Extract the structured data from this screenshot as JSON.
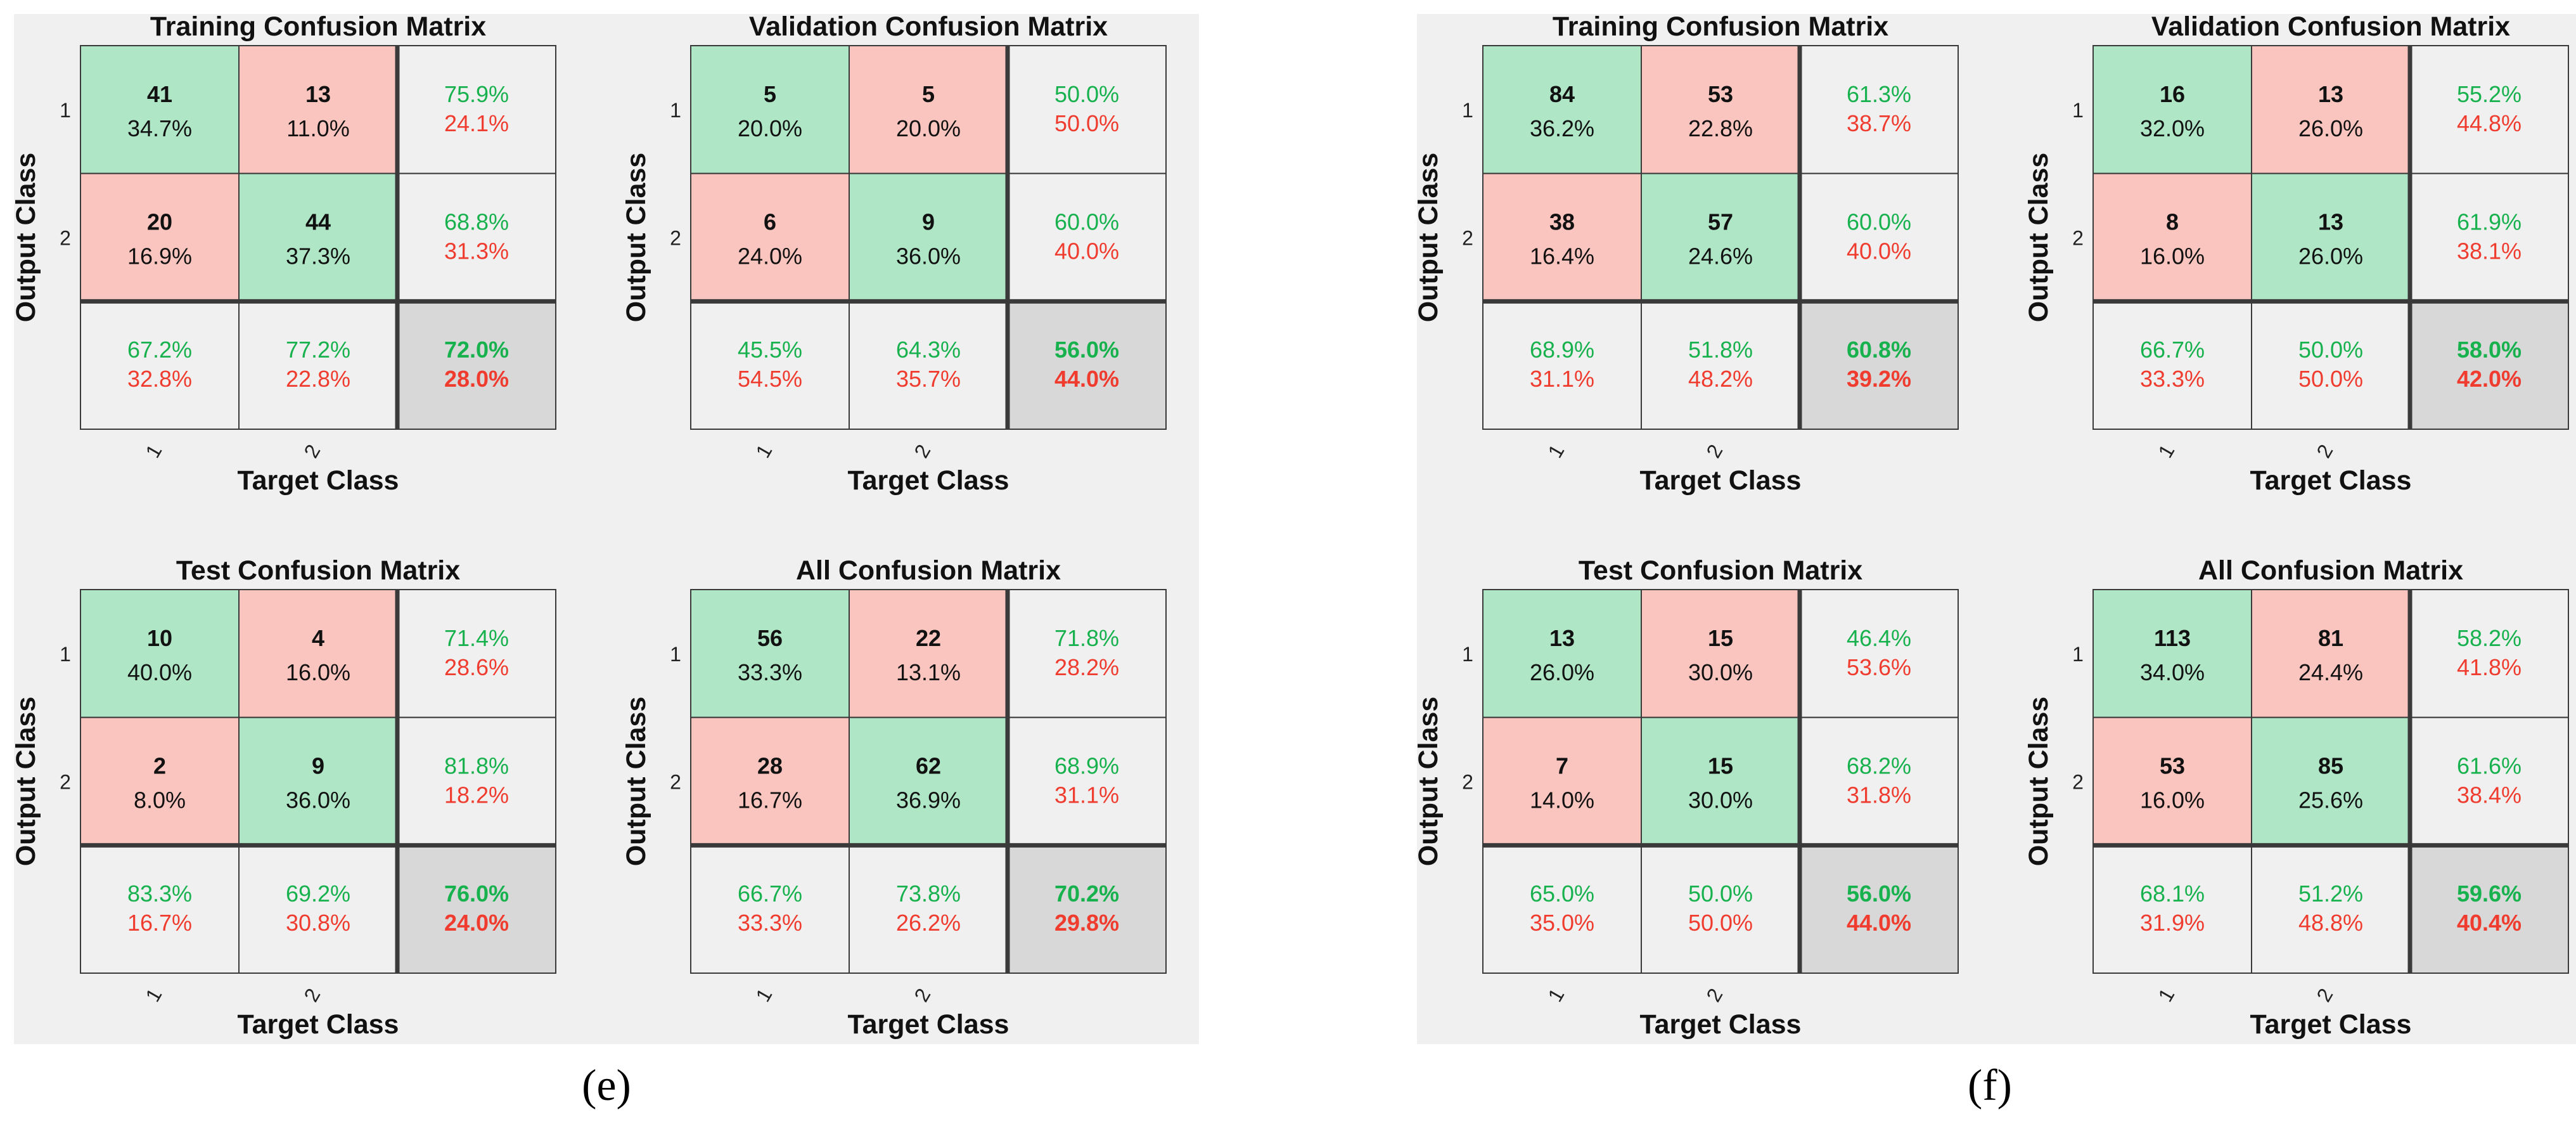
{
  "colors": {
    "panel_bg": "#f0f0f0",
    "correct_fill": "#aee6c6",
    "wrong_fill": "#fbc5bf",
    "summary_fill": "#f0f0f0",
    "overall_fill": "#d8d8d8",
    "green_text": "#17b14e",
    "red_text": "#f03c2f"
  },
  "chart_data": [
    {
      "type": "table",
      "subfigure": "(e)",
      "matrices": [
        {
          "title": "Training Confusion Matrix",
          "ylabel": "Output Class",
          "xlabel": "Target Class",
          "class_labels": [
            "1",
            "2"
          ],
          "counts": [
            [
              "41",
              "13"
            ],
            [
              "20",
              "44"
            ]
          ],
          "cell_pct": [
            [
              "34.7%",
              "11.0%"
            ],
            [
              "16.9%",
              "37.3%"
            ]
          ],
          "row_summary": [
            [
              "75.9%",
              "24.1%"
            ],
            [
              "68.8%",
              "31.3%"
            ]
          ],
          "col_summary": [
            [
              "67.2%",
              "32.8%"
            ],
            [
              "77.2%",
              "22.8%"
            ]
          ],
          "overall": [
            "72.0%",
            "28.0%"
          ]
        },
        {
          "title": "Validation Confusion Matrix",
          "ylabel": "Output Class",
          "xlabel": "Target Class",
          "class_labels": [
            "1",
            "2"
          ],
          "counts": [
            [
              "5",
              "5"
            ],
            [
              "6",
              "9"
            ]
          ],
          "cell_pct": [
            [
              "20.0%",
              "20.0%"
            ],
            [
              "24.0%",
              "36.0%"
            ]
          ],
          "row_summary": [
            [
              "50.0%",
              "50.0%"
            ],
            [
              "60.0%",
              "40.0%"
            ]
          ],
          "col_summary": [
            [
              "45.5%",
              "54.5%"
            ],
            [
              "64.3%",
              "35.7%"
            ]
          ],
          "overall": [
            "56.0%",
            "44.0%"
          ]
        },
        {
          "title": "Test Confusion Matrix",
          "ylabel": "Output Class",
          "xlabel": "Target Class",
          "class_labels": [
            "1",
            "2"
          ],
          "counts": [
            [
              "10",
              "4"
            ],
            [
              "2",
              "9"
            ]
          ],
          "cell_pct": [
            [
              "40.0%",
              "16.0%"
            ],
            [
              "8.0%",
              "36.0%"
            ]
          ],
          "row_summary": [
            [
              "71.4%",
              "28.6%"
            ],
            [
              "81.8%",
              "18.2%"
            ]
          ],
          "col_summary": [
            [
              "83.3%",
              "16.7%"
            ],
            [
              "69.2%",
              "30.8%"
            ]
          ],
          "overall": [
            "76.0%",
            "24.0%"
          ]
        },
        {
          "title": "All Confusion Matrix",
          "ylabel": "Output Class",
          "xlabel": "Target Class",
          "class_labels": [
            "1",
            "2"
          ],
          "counts": [
            [
              "56",
              "22"
            ],
            [
              "28",
              "62"
            ]
          ],
          "cell_pct": [
            [
              "33.3%",
              "13.1%"
            ],
            [
              "16.7%",
              "36.9%"
            ]
          ],
          "row_summary": [
            [
              "71.8%",
              "28.2%"
            ],
            [
              "68.9%",
              "31.1%"
            ]
          ],
          "col_summary": [
            [
              "66.7%",
              "33.3%"
            ],
            [
              "73.8%",
              "26.2%"
            ]
          ],
          "overall": [
            "70.2%",
            "29.8%"
          ]
        }
      ]
    },
    {
      "type": "table",
      "subfigure": "(f)",
      "matrices": [
        {
          "title": "Training Confusion Matrix",
          "ylabel": "Output Class",
          "xlabel": "Target Class",
          "class_labels": [
            "1",
            "2"
          ],
          "counts": [
            [
              "84",
              "53"
            ],
            [
              "38",
              "57"
            ]
          ],
          "cell_pct": [
            [
              "36.2%",
              "22.8%"
            ],
            [
              "16.4%",
              "24.6%"
            ]
          ],
          "row_summary": [
            [
              "61.3%",
              "38.7%"
            ],
            [
              "60.0%",
              "40.0%"
            ]
          ],
          "col_summary": [
            [
              "68.9%",
              "31.1%"
            ],
            [
              "51.8%",
              "48.2%"
            ]
          ],
          "overall": [
            "60.8%",
            "39.2%"
          ]
        },
        {
          "title": "Validation Confusion Matrix",
          "ylabel": "Output Class",
          "xlabel": "Target Class",
          "class_labels": [
            "1",
            "2"
          ],
          "counts": [
            [
              "16",
              "13"
            ],
            [
              "8",
              "13"
            ]
          ],
          "cell_pct": [
            [
              "32.0%",
              "26.0%"
            ],
            [
              "16.0%",
              "26.0%"
            ]
          ],
          "row_summary": [
            [
              "55.2%",
              "44.8%"
            ],
            [
              "61.9%",
              "38.1%"
            ]
          ],
          "col_summary": [
            [
              "66.7%",
              "33.3%"
            ],
            [
              "50.0%",
              "50.0%"
            ]
          ],
          "overall": [
            "58.0%",
            "42.0%"
          ]
        },
        {
          "title": "Test Confusion Matrix",
          "ylabel": "Output Class",
          "xlabel": "Target Class",
          "class_labels": [
            "1",
            "2"
          ],
          "counts": [
            [
              "13",
              "15"
            ],
            [
              "7",
              "15"
            ]
          ],
          "cell_pct": [
            [
              "26.0%",
              "30.0%"
            ],
            [
              "14.0%",
              "30.0%"
            ]
          ],
          "row_summary": [
            [
              "46.4%",
              "53.6%"
            ],
            [
              "68.2%",
              "31.8%"
            ]
          ],
          "col_summary": [
            [
              "65.0%",
              "35.0%"
            ],
            [
              "50.0%",
              "50.0%"
            ]
          ],
          "overall": [
            "56.0%",
            "44.0%"
          ]
        },
        {
          "title": "All Confusion Matrix",
          "ylabel": "Output Class",
          "xlabel": "Target Class",
          "class_labels": [
            "1",
            "2"
          ],
          "counts": [
            [
              "113",
              "81"
            ],
            [
              "53",
              "85"
            ]
          ],
          "cell_pct": [
            [
              "34.0%",
              "24.4%"
            ],
            [
              "16.0%",
              "25.6%"
            ]
          ],
          "row_summary": [
            [
              "58.2%",
              "41.8%"
            ],
            [
              "61.6%",
              "38.4%"
            ]
          ],
          "col_summary": [
            [
              "68.1%",
              "31.9%"
            ],
            [
              "51.2%",
              "48.8%"
            ]
          ],
          "overall": [
            "59.6%",
            "40.4%"
          ]
        }
      ]
    }
  ]
}
